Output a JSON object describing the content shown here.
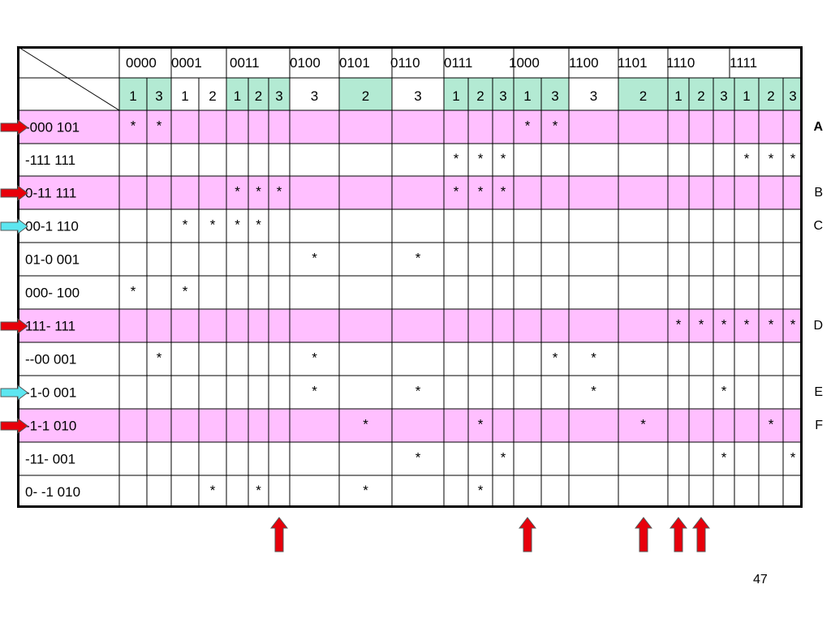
{
  "table": {
    "col_groups": [
      "0000",
      "0001",
      "0011",
      "0100",
      "0101",
      "0110",
      "0111",
      "1000",
      "1100",
      "1101",
      "1110",
      "1111"
    ],
    "col_subs": [
      "1",
      "3",
      "1",
      "2",
      "1",
      "2",
      "3",
      "3",
      "2",
      "3",
      "1",
      "2",
      "3",
      "1",
      "3",
      "3",
      "2",
      "1",
      "2",
      "3",
      "1",
      "2",
      "3"
    ],
    "colors": {
      "row_highlight": "#ffbfff",
      "sub_header_highlight": "#b3ead3",
      "grid_line": "#000000",
      "arrow_red": "#e8000b",
      "arrow_cyan": "#5ce6f0"
    },
    "rows": [
      {
        "label": "-000  101",
        "highlight": true,
        "arrow": "red",
        "marks": [
          0,
          1,
          13,
          14
        ],
        "side": "A"
      },
      {
        "label": "-111  111",
        "highlight": false,
        "arrow": null,
        "marks": [
          10,
          11,
          12,
          20,
          21,
          22
        ],
        "side": ""
      },
      {
        "label": "0-11  111",
        "highlight": true,
        "arrow": "red",
        "marks": [
          4,
          5,
          6,
          10,
          11,
          12
        ],
        "side": "B"
      },
      {
        "label": "00-1  110",
        "highlight": false,
        "arrow": "cyan",
        "marks": [
          2,
          3,
          4,
          5
        ],
        "side": "C"
      },
      {
        "label": "01-0  001",
        "highlight": false,
        "arrow": null,
        "marks": [
          7,
          9
        ],
        "side": ""
      },
      {
        "label": "000-  100",
        "highlight": false,
        "arrow": null,
        "marks": [
          0,
          2
        ],
        "side": ""
      },
      {
        "label": "111-  111",
        "highlight": true,
        "arrow": "red",
        "marks": [
          17,
          18,
          19,
          20,
          21,
          22
        ],
        "side": "D"
      },
      {
        "label": "--00   001",
        "highlight": false,
        "arrow": null,
        "marks": [
          1,
          7,
          14,
          15
        ],
        "side": ""
      },
      {
        "label": "-1-0   001",
        "highlight": false,
        "arrow": "cyan",
        "marks": [
          7,
          9,
          15,
          19
        ],
        "side": "E"
      },
      {
        "label": "-1-1   010",
        "highlight": true,
        "arrow": "red",
        "marks": [
          8,
          11,
          16,
          21
        ],
        "side": "F"
      },
      {
        "label": "-11-   001",
        "highlight": false,
        "arrow": null,
        "marks": [
          9,
          12,
          19,
          22
        ],
        "side": ""
      },
      {
        "label": "0- -1  010",
        "highlight": false,
        "arrow": null,
        "marks": [
          3,
          5,
          8,
          11
        ],
        "side": ""
      }
    ],
    "mark_symbol": "*",
    "bottom_arrow_columns": [
      6,
      13,
      16,
      17,
      18
    ]
  },
  "page_number": "47"
}
